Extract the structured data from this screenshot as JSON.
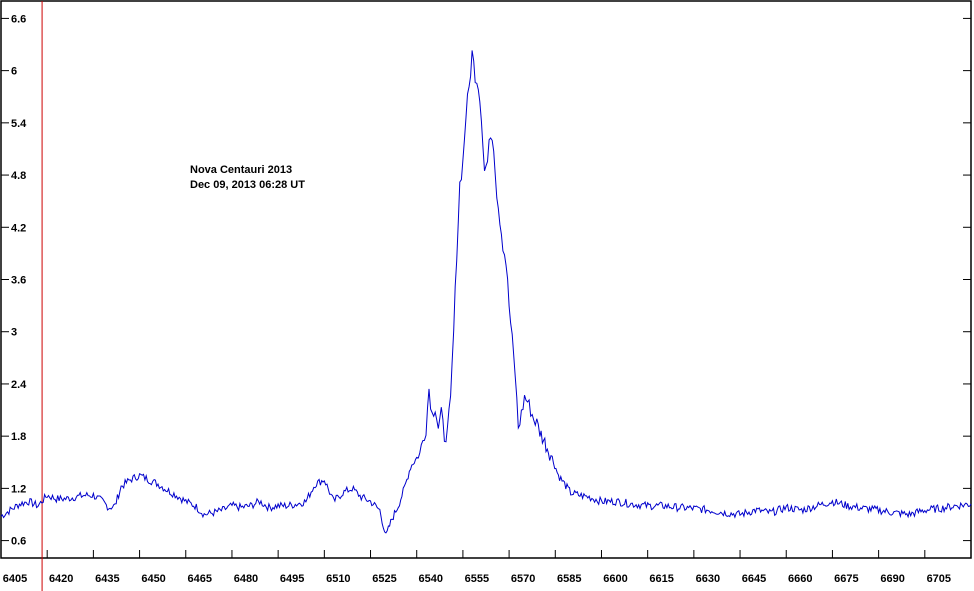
{
  "chart_data": {
    "type": "line",
    "title": "",
    "xlabel": "",
    "ylabel": "",
    "xlim": [
      6405,
      6720
    ],
    "ylim": [
      0.4,
      6.8
    ],
    "x_ticks": [
      6405,
      6420,
      6435,
      6450,
      6465,
      6480,
      6495,
      6510,
      6525,
      6540,
      6555,
      6570,
      6585,
      6600,
      6615,
      6630,
      6645,
      6660,
      6675,
      6690,
      6705
    ],
    "y_ticks": [
      0.6,
      1.2,
      1.8,
      2.4,
      3,
      3.6,
      4.2,
      4.8,
      5.4,
      6,
      6.6
    ],
    "annotation": [
      "Nova Centauri 2013",
      "Dec 09, 2013  06:28 UT"
    ],
    "marker_line_x": 6406,
    "colors": {
      "series": "#0000cc",
      "marker": "#cc0000",
      "frame": "#000000"
    },
    "series": [
      {
        "x": [
          6405,
          6408,
          6411,
          6414,
          6417,
          6420,
          6423,
          6426,
          6429,
          6432,
          6435,
          6438,
          6440,
          6442,
          6444,
          6447,
          6450,
          6453,
          6456,
          6459,
          6462,
          6465,
          6468,
          6471,
          6474,
          6477,
          6480,
          6483,
          6486,
          6489,
          6492,
          6495,
          6498,
          6501,
          6504,
          6507,
          6510,
          6513,
          6516,
          6519,
          6522,
          6525,
          6528,
          6530,
          6532,
          6534,
          6536,
          6538,
          6540,
          6541,
          6542,
          6543,
          6544,
          6545,
          6546,
          6547,
          6548,
          6549,
          6550,
          6551,
          6552,
          6553,
          6554,
          6555,
          6556,
          6557,
          6558,
          6559,
          6560,
          6561,
          6562,
          6563,
          6564,
          6565,
          6566,
          6567,
          6568,
          6569,
          6570,
          6571,
          6572,
          6573,
          6574,
          6575,
          6576,
          6577,
          6578,
          6579,
          6580,
          6582,
          6584,
          6586,
          6588,
          6590,
          6593,
          6596,
          6600,
          6605,
          6610,
          6615,
          6620,
          6625,
          6630,
          6635,
          6640,
          6645,
          6650,
          6655,
          6660,
          6665,
          6670,
          6675,
          6680,
          6685,
          6690,
          6695,
          6700,
          6705,
          6710,
          6715,
          6720
        ],
        "y": [
          0.88,
          0.95,
          1.02,
          1.05,
          1.0,
          1.12,
          1.08,
          1.08,
          1.1,
          1.12,
          1.12,
          1.05,
          0.98,
          1.0,
          1.22,
          1.3,
          1.35,
          1.3,
          1.25,
          1.18,
          1.12,
          1.05,
          1.0,
          0.9,
          0.92,
          0.95,
          1.0,
          0.98,
          1.0,
          1.05,
          0.98,
          1.0,
          1.0,
          1.02,
          1.05,
          1.25,
          1.3,
          1.05,
          1.15,
          1.2,
          1.1,
          1.05,
          0.95,
          0.65,
          0.85,
          1.0,
          1.2,
          1.45,
          1.55,
          1.6,
          1.75,
          1.9,
          2.35,
          2.05,
          2.15,
          1.9,
          2.05,
          1.8,
          1.85,
          2.2,
          3.0,
          3.9,
          4.7,
          4.95,
          5.5,
          5.8,
          6.2,
          5.95,
          5.85,
          5.5,
          4.85,
          4.95,
          5.3,
          5.15,
          4.6,
          4.3,
          4.0,
          3.8,
          3.3,
          2.9,
          2.5,
          1.9,
          2.05,
          2.25,
          2.2,
          2.1,
          2.0,
          1.95,
          1.85,
          1.7,
          1.55,
          1.35,
          1.25,
          1.15,
          1.12,
          1.1,
          1.05,
          1.05,
          1.02,
          1.0,
          1.0,
          0.98,
          0.97,
          0.95,
          0.92,
          0.9,
          0.95,
          0.92,
          0.98,
          0.95,
          1.0,
          1.05,
          1.0,
          0.97,
          0.95,
          0.92,
          0.9,
          0.95,
          0.97,
          1.0,
          1.02
        ]
      }
    ]
  }
}
